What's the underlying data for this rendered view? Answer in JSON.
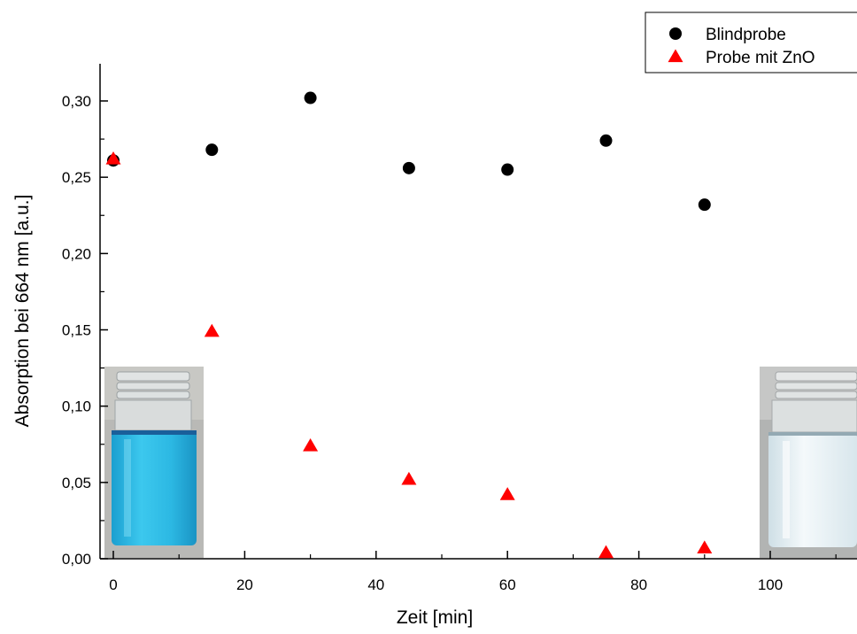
{
  "chart_data": {
    "type": "scatter",
    "xlabel": "Zeit [min]",
    "ylabel": "Absorption bei 664 nm [a.u.]",
    "xlim": [
      -2,
      118
    ],
    "ylim": [
      0,
      0.327
    ],
    "x_ticks": [
      {
        "value": 0,
        "label": "0"
      },
      {
        "value": 20,
        "label": "20"
      },
      {
        "value": 40,
        "label": "40"
      },
      {
        "value": 60,
        "label": "60"
      },
      {
        "value": 80,
        "label": "80"
      },
      {
        "value": 100,
        "label": "100"
      }
    ],
    "y_ticks": [
      {
        "value": 0,
        "label": "0,00"
      },
      {
        "value": 0.05,
        "label": "0,05"
      },
      {
        "value": 0.1,
        "label": "0,10"
      },
      {
        "value": 0.15,
        "label": "0,15"
      },
      {
        "value": 0.2,
        "label": "0,20"
      },
      {
        "value": 0.25,
        "label": "0,25"
      },
      {
        "value": 0.3,
        "label": "0,30"
      }
    ],
    "legend_position": "top-right",
    "series": [
      {
        "name": "Blindprobe",
        "marker": "circle",
        "color": "#000000",
        "x": [
          0,
          15,
          30,
          45,
          60,
          75,
          90
        ],
        "y": [
          0.261,
          0.268,
          0.302,
          0.256,
          0.255,
          0.274,
          0.232
        ]
      },
      {
        "name": "Probe mit ZnO",
        "marker": "triangle",
        "color": "#ff0000",
        "x": [
          0,
          15,
          30,
          45,
          60,
          75,
          90
        ],
        "y": [
          0.262,
          0.149,
          0.074,
          0.052,
          0.042,
          0.004,
          0.007
        ]
      }
    ]
  },
  "photos": {
    "left": {
      "name": "blue-sample-vial",
      "liquid_color": "#2bbde6"
    },
    "right": {
      "name": "clear-sample-vial",
      "liquid_color": "#e4eef2"
    }
  }
}
